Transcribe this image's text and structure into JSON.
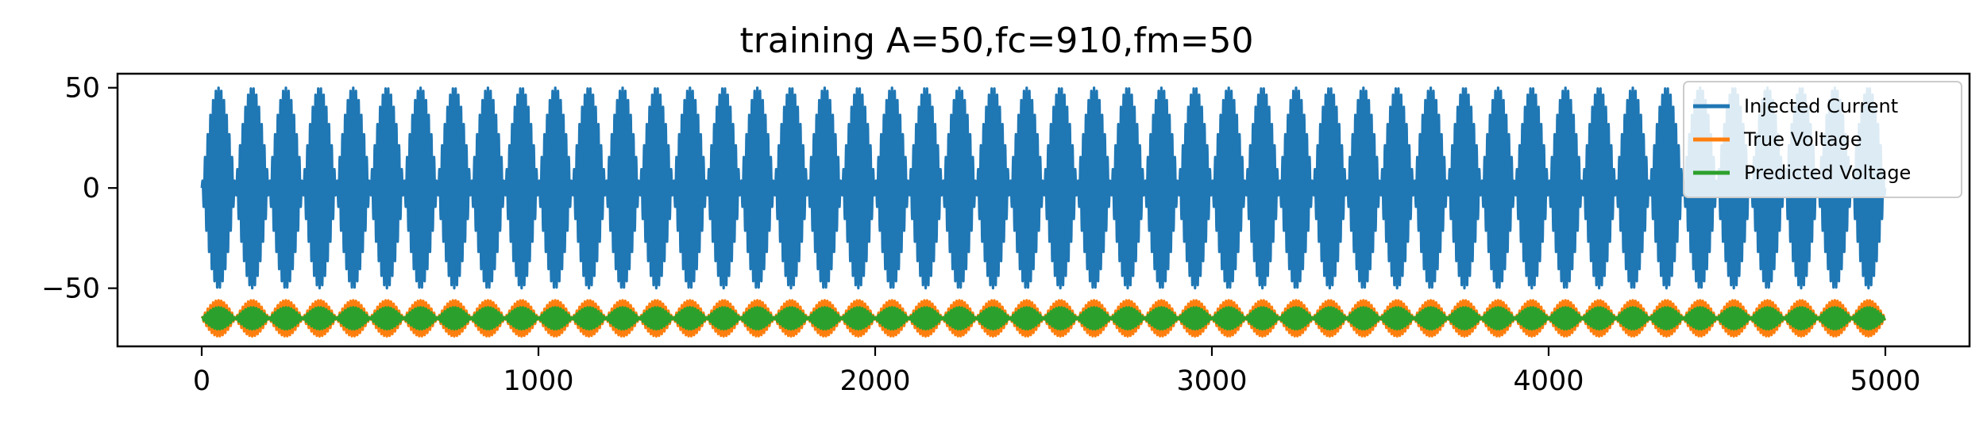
{
  "chart_data": {
    "type": "line",
    "title": "training A=50,fc=910,fm=50",
    "xlabel": "",
    "ylabel": "",
    "xlim": [
      -250,
      5250
    ],
    "ylim": [
      -79,
      57
    ],
    "x_ticks": [
      0,
      1000,
      2000,
      3000,
      4000,
      5000
    ],
    "x_tick_labels": [
      "0",
      "1000",
      "2000",
      "3000",
      "4000",
      "5000"
    ],
    "y_ticks": [
      50,
      0,
      -50
    ],
    "y_tick_labels": [
      "50",
      "0",
      "−50"
    ],
    "grid": false,
    "legend_position": "top-right",
    "series": [
      {
        "name": "Injected Current",
        "color": "#1f77b4",
        "x_range": [
          0,
          5000
        ],
        "center": 0,
        "amplitude": 50,
        "envelope_period": 100,
        "oscillation_period": 8
      },
      {
        "name": "True Voltage",
        "color": "#ff7f0e",
        "x_range": [
          0,
          5000
        ],
        "center": -65,
        "amplitude": 9,
        "envelope_period": 100,
        "oscillation_period": 8
      },
      {
        "name": "Predicted Voltage",
        "color": "#2ca02c",
        "x_range": [
          0,
          5000
        ],
        "center": -65,
        "amplitude": 5.5,
        "envelope_period": 100,
        "oscillation_period": 8
      }
    ]
  }
}
